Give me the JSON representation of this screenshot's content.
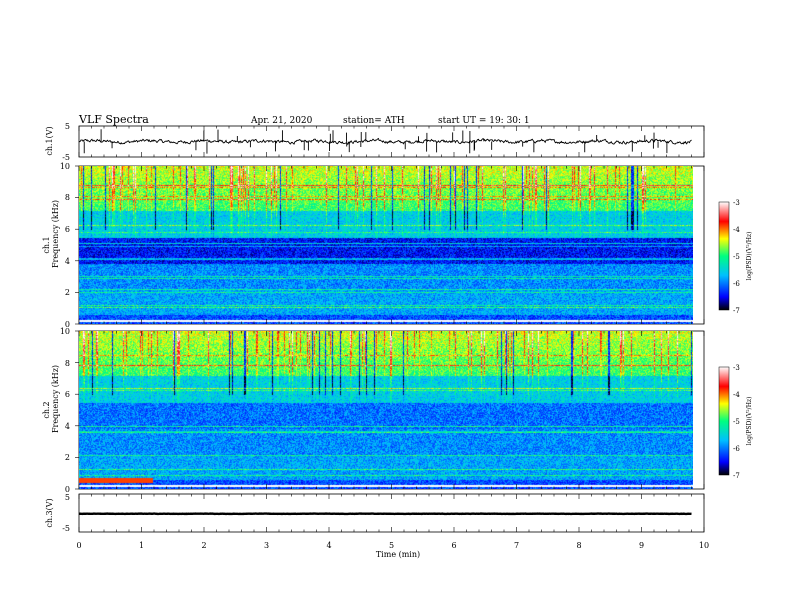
{
  "header": {
    "title": "VLF  Spectra",
    "date": "Apr. 21, 2020",
    "station": "station= ATH",
    "start": "start  UT  =    19: 30: 1"
  },
  "chart_data": [
    {
      "type": "line",
      "ylabel": "ch.1(V)",
      "ylim": [
        -5,
        5
      ],
      "yticks": [
        "5",
        "-5"
      ],
      "xlim": [
        0,
        10
      ],
      "trace": {
        "mean": 0,
        "noise": 0.8,
        "spikes": 45,
        "color": "#000000"
      }
    },
    {
      "type": "heatmap",
      "ylabel_line1": "ch.1",
      "ylabel_line2": "Frequency  (kHz)",
      "ylim": [
        0,
        10
      ],
      "yticks": [
        "0",
        "2",
        "4",
        "6",
        "8",
        "10"
      ],
      "xlim": [
        0,
        9.8
      ],
      "colorbar": {
        "label": "log(PSD)(V²/Hz)",
        "range": [
          -7,
          -3
        ],
        "ticks": [
          "-3",
          "-4",
          "-5",
          "-6",
          "-7"
        ]
      }
    },
    {
      "type": "heatmap",
      "ylabel_line1": "ch.2",
      "ylabel_line2": "Frequency  (kHz)",
      "ylim": [
        0,
        10
      ],
      "yticks": [
        "0",
        "2",
        "4",
        "6",
        "8",
        "10"
      ],
      "xlim": [
        0,
        9.8
      ],
      "colorbar": {
        "label": "log(PSD)(V²/Hz)",
        "range": [
          -7,
          -3
        ],
        "ticks": [
          "-3",
          "-4",
          "-5",
          "-6",
          "-7"
        ]
      }
    },
    {
      "type": "line",
      "ylabel": "ch.3(V)",
      "ylim": [
        -5,
        5
      ],
      "yticks": [
        "5",
        "-5"
      ],
      "xlim": [
        0,
        10
      ],
      "trace": {
        "mean": -0.2,
        "noise": 0.05,
        "spikes": 0,
        "color": "#000000"
      }
    }
  ],
  "xaxis": {
    "label": "Time  (min)",
    "ticks": [
      "0",
      "1",
      "2",
      "3",
      "4",
      "5",
      "6",
      "7",
      "8",
      "9",
      "10"
    ],
    "xlim": [
      0,
      10
    ]
  },
  "colormap": [
    "#000000",
    "#0000ff",
    "#00bfff",
    "#00ff7f",
    "#ffff00",
    "#ff0000",
    "#ffffff"
  ]
}
